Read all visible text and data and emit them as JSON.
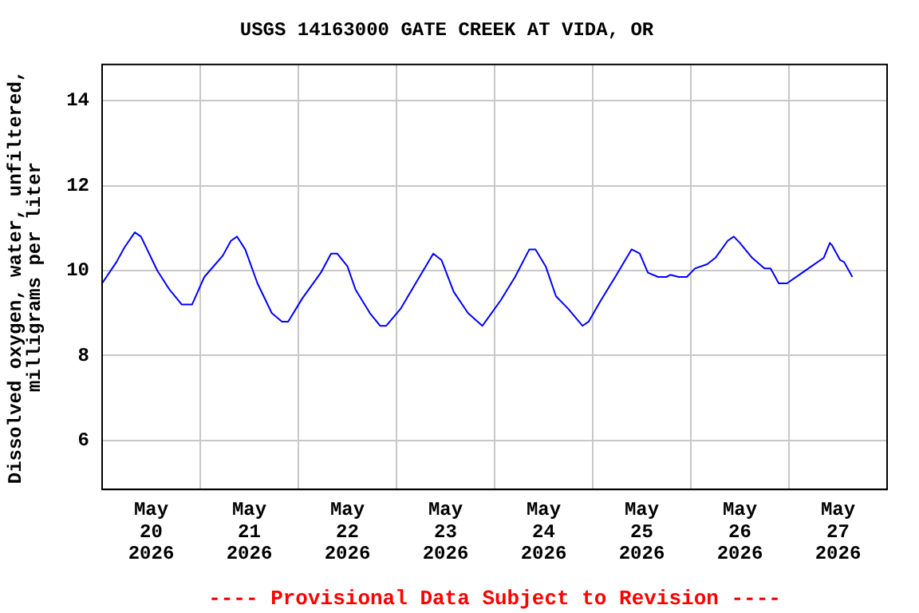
{
  "chart_data": {
    "type": "line",
    "title": "USGS 14163000 GATE CREEK AT VIDA, OR",
    "ylabel": "Dissolved oxygen, water, unfiltered,\nmilligrams per liter",
    "annotations": [
      "---- Provisional Data Subject to Revision ----"
    ],
    "x": [
      "2026-05-20T00:00",
      "2026-05-20T03:30",
      "2026-05-20T05:30",
      "2026-05-20T08:00",
      "2026-05-20T09:30",
      "2026-05-20T13:30",
      "2026-05-20T16:30",
      "2026-05-20T19:30",
      "2026-05-20T22:00",
      "2026-05-21T01:00",
      "2026-05-21T05:30",
      "2026-05-21T07:30",
      "2026-05-21T09:00",
      "2026-05-21T11:00",
      "2026-05-21T14:00",
      "2026-05-21T17:30",
      "2026-05-21T20:00",
      "2026-05-21T21:30",
      "2026-05-22T01:00",
      "2026-05-22T05:30",
      "2026-05-22T08:00",
      "2026-05-22T09:30",
      "2026-05-22T12:00",
      "2026-05-22T14:00",
      "2026-05-22T17:30",
      "2026-05-22T20:00",
      "2026-05-22T21:30",
      "2026-05-23T01:00",
      "2026-05-23T05:00",
      "2026-05-23T09:00",
      "2026-05-23T11:00",
      "2026-05-23T14:00",
      "2026-05-23T17:30",
      "2026-05-23T21:00",
      "2026-05-23T22:30",
      "2026-05-24T01:30",
      "2026-05-24T05:00",
      "2026-05-24T08:30",
      "2026-05-24T10:00",
      "2026-05-24T12:30",
      "2026-05-24T15:00",
      "2026-05-24T18:00",
      "2026-05-24T21:30",
      "2026-05-24T23:00",
      "2026-05-25T02:00",
      "2026-05-25T05:30",
      "2026-05-25T09:30",
      "2026-05-25T11:30",
      "2026-05-25T13:30",
      "2026-05-25T16:00",
      "2026-05-25T18:00",
      "2026-05-25T19:00",
      "2026-05-25T21:00",
      "2026-05-25T23:00",
      "2026-05-26T01:00",
      "2026-05-26T04:00",
      "2026-05-26T06:00",
      "2026-05-26T09:00",
      "2026-05-26T10:30",
      "2026-05-26T12:00",
      "2026-05-26T15:00",
      "2026-05-26T18:00",
      "2026-05-26T19:30",
      "2026-05-26T21:30",
      "2026-05-26T23:30",
      "2026-05-27T02:30",
      "2026-05-27T05:30",
      "2026-05-27T08:30",
      "2026-05-27T10:00",
      "2026-05-27T10:30",
      "2026-05-27T12:30",
      "2026-05-27T13:30",
      "2026-05-27T15:30"
    ],
    "series": [
      {
        "color": "#0000ff",
        "values": [
          9.7,
          10.2,
          10.55,
          10.9,
          10.8,
          10.0,
          9.55,
          9.2,
          9.2,
          9.85,
          10.35,
          10.7,
          10.8,
          10.5,
          9.7,
          9.0,
          8.8,
          8.8,
          9.35,
          9.95,
          10.4,
          10.4,
          10.1,
          9.55,
          9.0,
          8.7,
          8.7,
          9.1,
          9.75,
          10.4,
          10.25,
          9.5,
          9.0,
          8.7,
          8.9,
          9.3,
          9.85,
          10.5,
          10.5,
          10.1,
          9.4,
          9.1,
          8.7,
          8.8,
          9.3,
          9.85,
          10.5,
          10.4,
          9.95,
          9.85,
          9.85,
          9.9,
          9.85,
          9.85,
          10.05,
          10.15,
          10.3,
          10.7,
          10.8,
          10.65,
          10.3,
          10.05,
          10.05,
          9.7,
          9.7,
          9.9,
          10.1,
          10.3,
          10.65,
          10.6,
          10.25,
          10.2,
          9.85
        ]
      }
    ],
    "xlim": [
      "2026-05-20T00:00",
      "2026-05-28T00:00"
    ],
    "xticks": [
      {
        "value": "2026-05-20T12:00",
        "label": "May\n20\n2026"
      },
      {
        "value": "2026-05-21T00:00",
        "label": null
      },
      {
        "value": "2026-05-21T12:00",
        "label": "May\n21\n2026"
      },
      {
        "value": "2026-05-22T00:00",
        "label": null
      },
      {
        "value": "2026-05-22T12:00",
        "label": "May\n22\n2026"
      },
      {
        "value": "2026-05-23T00:00",
        "label": null
      },
      {
        "value": "2026-05-23T12:00",
        "label": "May\n23\n2026"
      },
      {
        "value": "2026-05-24T00:00",
        "label": null
      },
      {
        "value": "2026-05-24T12:00",
        "label": "May\n24\n2026"
      },
      {
        "value": "2026-05-25T00:00",
        "label": null
      },
      {
        "value": "2026-05-25T12:00",
        "label": "May\n25\n2026"
      },
      {
        "value": "2026-05-26T00:00",
        "label": null
      },
      {
        "value": "2026-05-26T12:00",
        "label": "May\n26\n2026"
      },
      {
        "value": "2026-05-27T00:00",
        "label": null
      },
      {
        "value": "2026-05-27T12:00",
        "label": "May\n27\n2026"
      }
    ],
    "ylim": [
      4.85,
      14.85
    ],
    "yticks": [
      6,
      8,
      10,
      12,
      14
    ],
    "grid": true,
    "marker": "none",
    "line_style": "solid",
    "legend": false
  }
}
